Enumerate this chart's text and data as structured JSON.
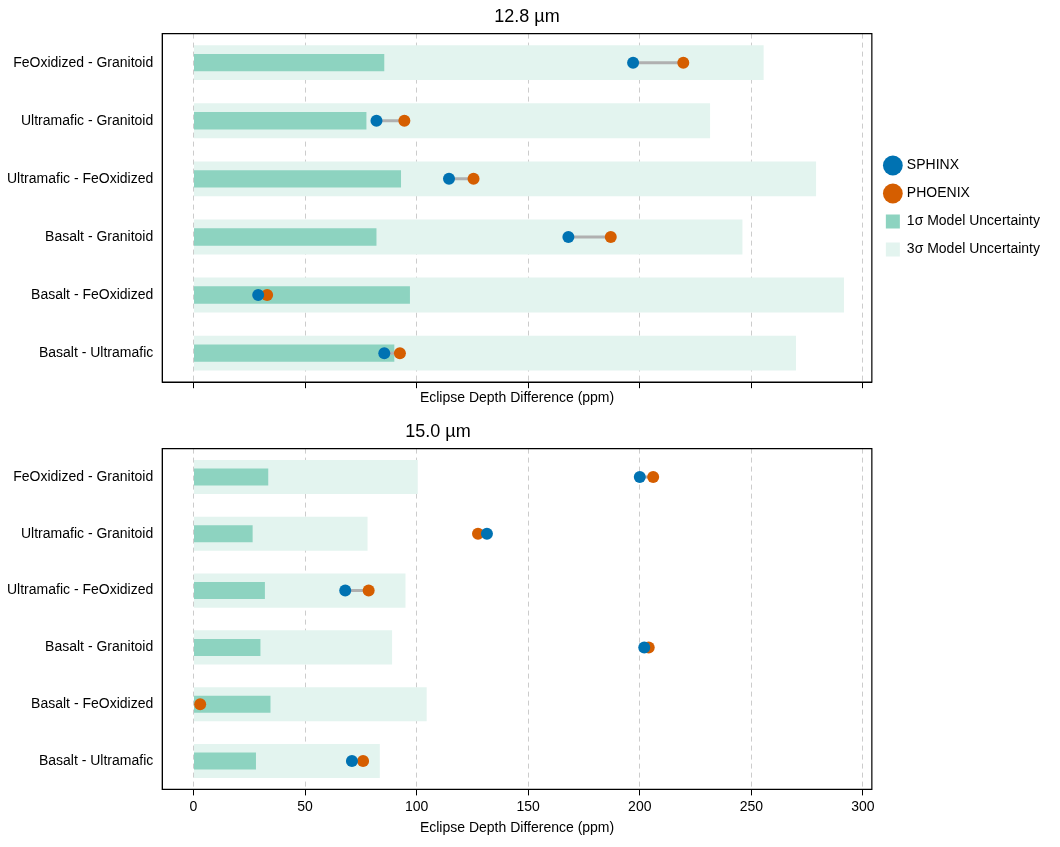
{
  "chart_data": [
    {
      "type": "bar",
      "orientation": "horizontal",
      "title": "12.8 µm",
      "xlabel": "Eclipse Depth Difference (ppm)",
      "categories": [
        "FeOxidized - Granitoid",
        "Ultramafic - Granitoid",
        "Ultramafic - FeOxidized",
        "Basalt - Granitoid",
        "Basalt - FeOxidized",
        "Basalt - Ultramafic"
      ],
      "series": [
        {
          "type": "scatter",
          "name": "SPHINX",
          "color": "#0072b2",
          "values": [
            197,
            82,
            114.5,
            168,
            29,
            85.5
          ]
        },
        {
          "type": "scatter",
          "name": "PHOENIX",
          "color": "#d55e00",
          "values": [
            219.5,
            94.5,
            125.5,
            187,
            33,
            92.5
          ]
        },
        {
          "type": "bar",
          "name": "1σ Model Uncertainty",
          "color": "#8dd3c0",
          "values": [
            85.5,
            77.5,
            93,
            82,
            97,
            90
          ]
        },
        {
          "type": "bar",
          "name": "3σ Model Uncertainty",
          "color": "#e3f4ef",
          "values": [
            255.5,
            231.5,
            279,
            246,
            291.5,
            270
          ]
        }
      ],
      "xlim": [
        -14,
        304
      ],
      "xticks": [
        0,
        50,
        100,
        150,
        200,
        250,
        300
      ],
      "tick_labels": "y",
      "grid": "x",
      "marker": "circle",
      "legend": "right"
    },
    {
      "type": "bar",
      "orientation": "horizontal",
      "title": "15.0 µm",
      "xlabel": "Eclipse Depth Difference (ppm)",
      "categories": [
        "FeOxidized - Granitoid",
        "Ultramafic - Granitoid",
        "Ultramafic - FeOxidized",
        "Basalt - Granitoid",
        "Basalt - FeOxidized",
        "Basalt - Ultramafic"
      ],
      "series": [
        {
          "type": "scatter",
          "color": "#0072b2",
          "values": [
            200,
            131.5,
            68,
            202,
            null,
            71
          ]
        },
        {
          "type": "scatter",
          "color": "#d55e00",
          "values": [
            206,
            127.5,
            78.5,
            204,
            3,
            76
          ]
        },
        {
          "type": "bar",
          "color": "#8dd3c0",
          "values": [
            33.5,
            26.5,
            32,
            30,
            34.5,
            28
          ]
        },
        {
          "type": "bar",
          "color": "#e3f4ef",
          "values": [
            100.5,
            78,
            95,
            89,
            104.5,
            83.5
          ]
        }
      ],
      "xlim": [
        -14,
        304
      ],
      "xticks": [
        0,
        50,
        100,
        150,
        200,
        250,
        300
      ],
      "grid": "x",
      "marker": "circle",
      "legend": false
    }
  ]
}
